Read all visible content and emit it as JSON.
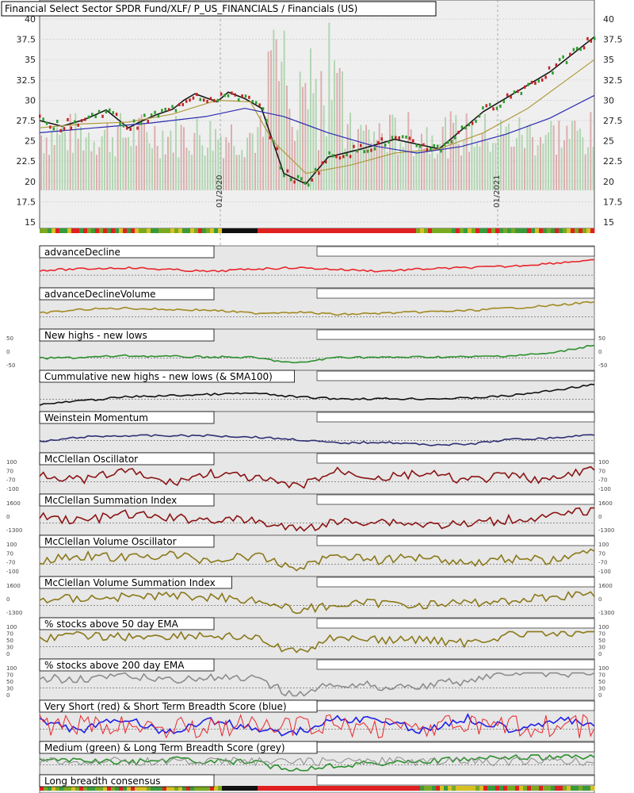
{
  "chart_data": {
    "type": "line",
    "title": "Financial Select Sector SPDR Fund/XLF/ P_US_FINANCIALS / Financials (US)",
    "price": {
      "y_ticks": [
        "40",
        "37.5",
        "35",
        "32.5",
        "30",
        "27.5",
        "25",
        "22.5",
        "20",
        "17.5",
        "15"
      ],
      "ylim": [
        15,
        40
      ],
      "x_labels": [
        "01/2020",
        "01/2021"
      ],
      "series": [
        {
          "x": [
            0,
            4,
            8,
            12,
            16,
            18,
            21,
            24,
            26,
            28,
            32,
            34,
            37,
            40,
            44,
            48,
            52,
            58,
            64,
            72,
            80,
            92,
            100
          ],
          "y": [
            27.5,
            26.8,
            27.6,
            28.8,
            26.6,
            27.3,
            28.2,
            28.9,
            30,
            30.8,
            29.8,
            31,
            30.2,
            29,
            21,
            19.7,
            23,
            24,
            25.2,
            24,
            28.6,
            33.5,
            37.8
          ]
        },
        {
          "x": [
            0,
            8,
            16,
            24,
            32,
            38,
            42,
            48,
            56,
            64,
            72,
            80,
            88,
            96,
            100
          ],
          "y": [
            26.6,
            27.1,
            27.3,
            28.3,
            30,
            29.8,
            25,
            21,
            22,
            23.5,
            24,
            26,
            29,
            33,
            35
          ]
        },
        {
          "x": [
            0,
            10,
            20,
            30,
            37,
            44,
            52,
            60,
            68,
            76,
            84,
            92,
            100
          ],
          "y": [
            26,
            26.6,
            27.2,
            28,
            29,
            28,
            26,
            24.4,
            23.5,
            24.3,
            25.8,
            27.8,
            30.6
          ]
        }
      ]
    },
    "panels": [
      {
        "title": "advanceDecline",
        "color": "#e8262b",
        "y": [
          0.45,
          0.4,
          0.35,
          0.42,
          0.5,
          0.4,
          0.35,
          0.42,
          0.48,
          0.4,
          0.35,
          0.3,
          0.18,
          0.05
        ],
        "left_ticks": [],
        "right_ticks": []
      },
      {
        "title": "advanceDeclineVolume",
        "color": "#a28a22",
        "y": [
          0.5,
          0.35,
          0.3,
          0.35,
          0.38,
          0.5,
          0.45,
          0.55,
          0.5,
          0.45,
          0.4,
          0.3,
          0.2,
          0.05
        ],
        "left_ticks": [],
        "right_ticks": []
      },
      {
        "title": "New highs - new lows",
        "color": "#2d8f2d",
        "y": [
          0.65,
          0.62,
          0.55,
          0.58,
          0.6,
          0.62,
          0.85,
          0.6,
          0.62,
          0.6,
          0.6,
          0.55,
          0.45,
          0.12
        ],
        "left_ticks": [
          "50",
          "0",
          "-50"
        ],
        "right_ticks": [
          "50",
          "0",
          "-50"
        ]
      },
      {
        "title": "Cummulative new highs - new lows (& SMA100)",
        "color": "#111111",
        "y": [
          0.85,
          0.7,
          0.55,
          0.5,
          0.45,
          0.4,
          0.55,
          0.62,
          0.62,
          0.62,
          0.6,
          0.5,
          0.3,
          0.05
        ],
        "left_ticks": [],
        "right_ticks": []
      },
      {
        "title": "Weinstein Momentum",
        "color": "#2f2f75",
        "y": [
          0.7,
          0.5,
          0.45,
          0.45,
          0.45,
          0.5,
          0.6,
          0.75,
          0.7,
          0.8,
          0.8,
          0.6,
          0.55,
          0.4
        ],
        "left_ticks": [],
        "right_ticks": []
      },
      {
        "title": "McClellan Oscillator",
        "color": "#8a1414",
        "y": [
          0.3,
          0.6,
          0.2,
          0.7,
          0.3,
          0.5,
          0.85,
          0.2,
          0.5,
          0.3,
          0.6,
          0.4,
          0.6,
          0.05
        ],
        "left_ticks": [
          "100",
          "70",
          "-70",
          "-100"
        ],
        "right_ticks": [
          "100",
          "70",
          "-70",
          "-100"
        ]
      },
      {
        "title": "McClellan Summation Index",
        "color": "#8a1414",
        "y": [
          0.4,
          0.55,
          0.3,
          0.45,
          0.5,
          0.55,
          0.9,
          0.6,
          0.55,
          0.7,
          0.7,
          0.5,
          0.4,
          0.1
        ],
        "left_ticks": [
          "1600",
          "0",
          "-1300"
        ],
        "right_ticks": [
          "1600",
          "0",
          "-1300"
        ]
      },
      {
        "title": "McClellan Volume Oscillator",
        "color": "#8a7818",
        "y": [
          0.5,
          0.3,
          0.4,
          0.25,
          0.5,
          0.3,
          0.8,
          0.25,
          0.5,
          0.3,
          0.6,
          0.4,
          0.5,
          0.1
        ],
        "left_ticks": [
          "100",
          "70",
          "-70",
          "-100"
        ],
        "right_ticks": [
          "100",
          "70",
          "-70",
          "-100"
        ]
      },
      {
        "title": "McClellan Volume Summation Index",
        "color": "#8a7818",
        "y": [
          0.4,
          0.35,
          0.3,
          0.25,
          0.3,
          0.4,
          0.85,
          0.6,
          0.55,
          0.6,
          0.55,
          0.45,
          0.3,
          0.15
        ],
        "left_ticks": [
          "1600",
          "0",
          "-1300"
        ],
        "right_ticks": [
          "1600",
          "0",
          "-1300"
        ]
      },
      {
        "title": "% stocks above 50 day EMA",
        "color": "#8a7818",
        "y": [
          0.3,
          0.2,
          0.25,
          0.2,
          0.2,
          0.3,
          0.9,
          0.2,
          0.4,
          0.35,
          0.5,
          0.15,
          0.1,
          0.1
        ],
        "left_ticks": [
          "100",
          "70",
          "50",
          "30",
          "0"
        ],
        "right_ticks": [
          "100",
          "70",
          "50",
          "30",
          "0"
        ]
      },
      {
        "title": "% stocks above 200 day EMA",
        "color": "#8c8c8c",
        "y": [
          0.3,
          0.25,
          0.2,
          0.3,
          0.25,
          0.3,
          0.95,
          0.45,
          0.6,
          0.55,
          0.35,
          0.05,
          0.05,
          0.05
        ],
        "left_ticks": [
          "100",
          "70",
          "50",
          "30",
          "0"
        ],
        "right_ticks": [
          "100",
          "70",
          "50",
          "30",
          "0"
        ]
      },
      {
        "title": "Very Short (red) & Short Term Breadth Score (blue)",
        "color": "#1f1fe6",
        "y": [
          0.3,
          0.7,
          0.2,
          0.8,
          0.3,
          0.6,
          0.8,
          0.2,
          0.3,
          0.7,
          0.2,
          0.6,
          0.3,
          0.4
        ],
        "left_ticks": [],
        "right_ticks": []
      },
      {
        "title": "Medium (green) & Long Term Breadth Score (grey)",
        "color": "#2d8f2d",
        "y": [
          0.4,
          0.3,
          0.5,
          0.3,
          0.4,
          0.5,
          0.9,
          0.6,
          0.5,
          0.4,
          0.3,
          0.2,
          0.2,
          0.1
        ],
        "left_ticks": [],
        "right_ticks": []
      },
      {
        "title": "Long breadth consensus",
        "color": "#e8262b",
        "y": [],
        "left_ticks": [],
        "right_ticks": []
      }
    ]
  }
}
